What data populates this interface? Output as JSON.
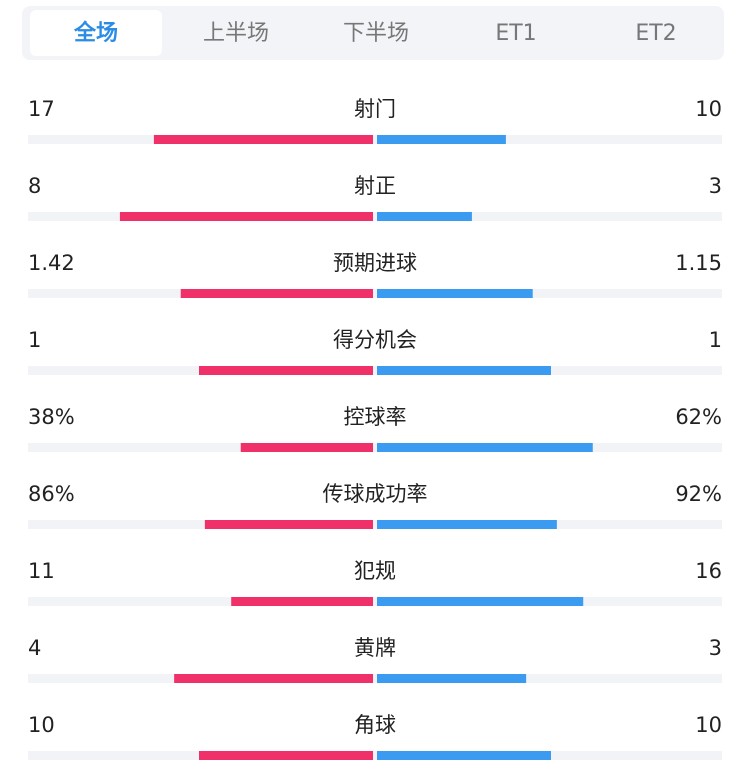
{
  "tabs": [
    "全场",
    "上半场",
    "下半场",
    "ET1",
    "ET2"
  ],
  "active_tab": 0,
  "stats": [
    {
      "name": "射门",
      "home": 17,
      "away": 10
    },
    {
      "name": "射正",
      "home": 8,
      "away": 3
    },
    {
      "name": "预期进球",
      "home": 1.42,
      "away": 1.15
    },
    {
      "name": "得分机会",
      "home": 1,
      "away": 1
    },
    {
      "name": "控球率",
      "home": 38,
      "home_label": "38%",
      "away": 62,
      "away_label": "62%"
    },
    {
      "name": "传球成功率",
      "home": 86,
      "home_label": "86%",
      "away": 92,
      "away_label": "92%"
    },
    {
      "name": "犯规",
      "home": 11,
      "away": 16
    },
    {
      "name": "黄牌",
      "home": 4,
      "away": 3
    },
    {
      "name": "角球",
      "home": 10,
      "away": 10
    }
  ]
}
